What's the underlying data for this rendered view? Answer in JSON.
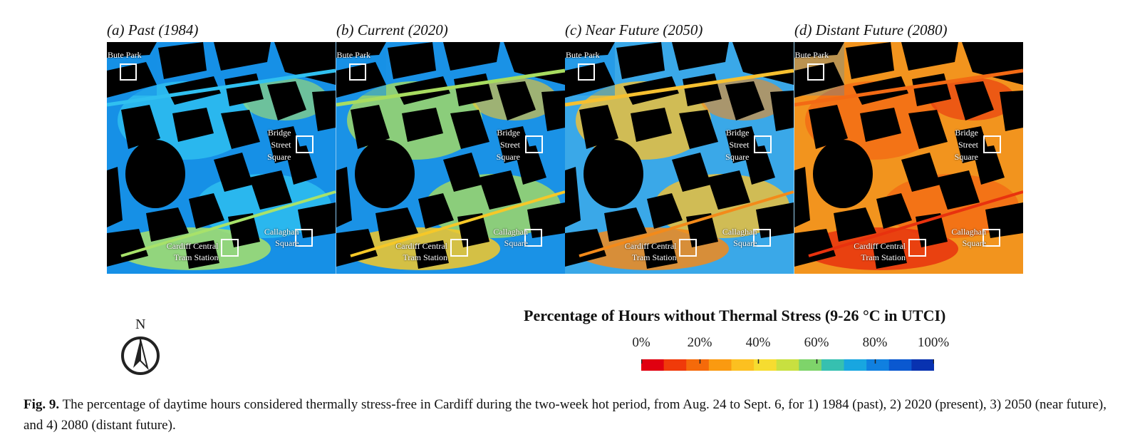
{
  "panels": [
    {
      "title": "(a) Past (1984)",
      "scheme": "past"
    },
    {
      "title": "(b) Current (2020)",
      "scheme": "current"
    },
    {
      "title": "(c) Near Future (2050)",
      "scheme": "near"
    },
    {
      "title": "(d) Distant Future (2080)",
      "scheme": "distant"
    }
  ],
  "labels": {
    "bute_park": "Bute Park",
    "bridge_street_square": [
      "Bridge",
      "Street",
      "Square"
    ],
    "callaghan_square": [
      "Callaghan",
      "Square"
    ],
    "cardiff_central": [
      "Cardiff Central",
      "Tram Station"
    ]
  },
  "north_label": "N",
  "legend": {
    "title": "Percentage of Hours without Thermal Stress (9-26 °C in UTCI)",
    "ticks": [
      "0%",
      "20%",
      "40%",
      "60%",
      "80%",
      "100%"
    ],
    "colors": [
      "#e00010",
      "#f03a0a",
      "#f56a0a",
      "#fa9a10",
      "#fcc020",
      "#f6dc30",
      "#c8e040",
      "#7ed46a",
      "#36c0b0",
      "#18a6e0",
      "#1080e0",
      "#0a58d0",
      "#0832b0"
    ]
  },
  "colors": {
    "building": "#000000",
    "past": {
      "base": "#1690e6",
      "warm": "#30c0f0",
      "hot": "#a8e26a"
    },
    "current": {
      "base": "#1a92e6",
      "warm": "#a8dc60",
      "hot": "#f6c828"
    },
    "near": {
      "base": "#3aa8e8",
      "warm": "#f6c030",
      "hot": "#f38a1a"
    },
    "distant": {
      "base": "#f2941e",
      "warm": "#f36a14",
      "hot": "#e8320e"
    }
  },
  "caption": {
    "label": "Fig. 9.",
    "text": "The percentage of daytime hours considered thermally stress-free in Cardiff during the two-week hot period, from Aug. 24 to Sept. 6, for 1) 1984 (past), 2) 2020 (present), 3) 2050 (near future), and 4) 2080 (distant future)."
  }
}
